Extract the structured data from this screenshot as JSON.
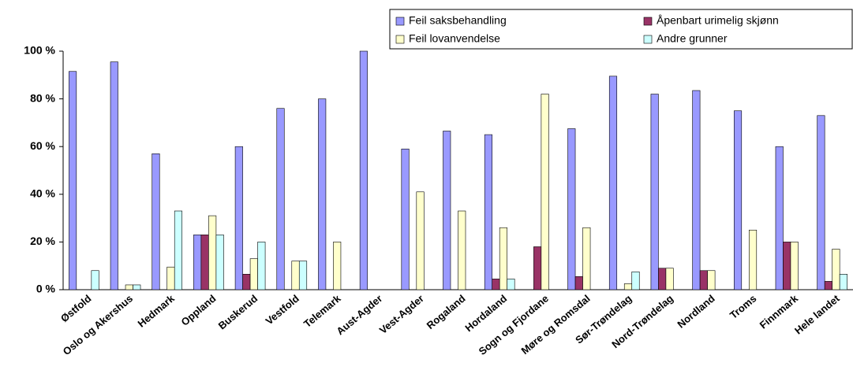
{
  "chart_data": {
    "type": "bar",
    "categories": [
      "Østfold",
      "Oslo og Akershus",
      "Hedmark",
      "Oppland",
      "Buskerud",
      "Vestfold",
      "Telemark",
      "Aust-Agder",
      "Vest-Agder",
      "Rogaland",
      "Hordaland",
      "Sogn og Fjordane",
      "Møre og Romsdal",
      "Sør-Trøndelag",
      "Nord-Trøndelag",
      "Nordland",
      "Troms",
      "Finnmark",
      "Hele landet"
    ],
    "series": [
      {
        "name": "Feil saksbehandling",
        "color": "#9999ff",
        "values": [
          91.5,
          95.5,
          57,
          23,
          60,
          76,
          80,
          100,
          59,
          66.5,
          65,
          0,
          67.5,
          89.5,
          82,
          83.5,
          75,
          60,
          73
        ]
      },
      {
        "name": "Åpenbart urimelig skjønn",
        "color": "#993366",
        "values": [
          0,
          0,
          0,
          23,
          6.5,
          0,
          0,
          0,
          0,
          0,
          4.5,
          18,
          5.5,
          0,
          9,
          8,
          0,
          20,
          3.5
        ]
      },
      {
        "name": "Feil lovanvendelse",
        "color": "#ffffcc",
        "values": [
          0,
          2,
          9.5,
          31,
          13,
          12,
          20,
          0,
          41,
          33,
          26,
          82,
          26,
          2.5,
          9,
          8,
          25,
          20,
          17
        ]
      },
      {
        "name": "Andre grunner",
        "color": "#ccffff",
        "values": [
          8,
          2,
          33,
          23,
          20,
          12,
          0,
          0,
          0,
          0,
          4.5,
          0,
          0,
          7.5,
          0,
          0,
          0,
          0,
          6.5
        ]
      }
    ],
    "ylim": [
      0,
      100
    ],
    "yticks": [
      {
        "value": 0,
        "label": "0 %"
      },
      {
        "value": 20,
        "label": "20 %"
      },
      {
        "value": 40,
        "label": "40 %"
      },
      {
        "value": 60,
        "label": "60 %"
      },
      {
        "value": 80,
        "label": "80 %"
      },
      {
        "value": 100,
        "label": "100 %"
      }
    ],
    "grid": false
  }
}
